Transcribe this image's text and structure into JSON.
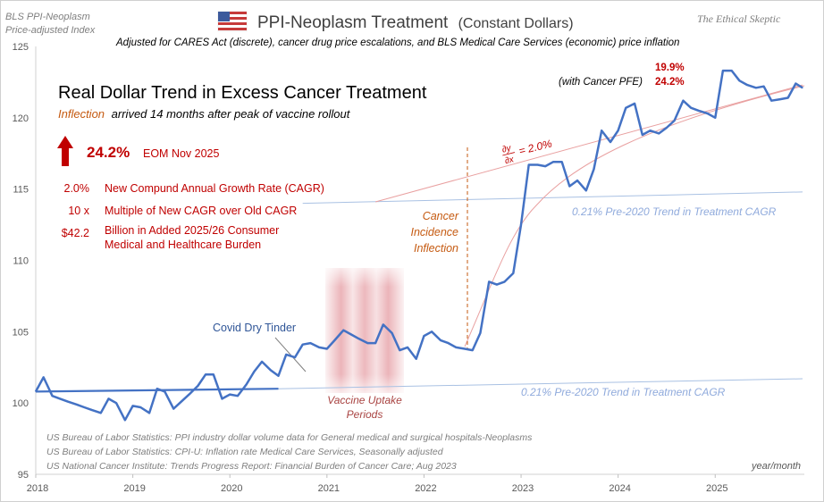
{
  "header": {
    "source_line1": "BLS PPI-Neoplasm",
    "source_line2": "Price-adjusted  Index",
    "title": "PPI-Neoplasm  Treatment",
    "title_suffix": "(Constant Dollars)",
    "brand": "The Ethical Skeptic",
    "subtitle": "Adjusted for CARES Act (discrete),  cancer drug price escalations, and BLS Medical Care Services  (economic)  price  inflation"
  },
  "summary": {
    "headline": "Real Dollar Trend in Excess Cancer Treatment",
    "inflection_word": "Inflection",
    "inflection_rest": "arrived 14 months after peak of vaccine rollout",
    "big_value": "24.2%",
    "big_label": "EOM Nov 2025",
    "stats": [
      {
        "value": "2.0%",
        "label": "New Compund Annual Growth Rate (CAGR)"
      },
      {
        "value": "10 x",
        "label": "Multiple of New CAGR over Old CAGR"
      },
      {
        "value": "$42.2",
        "label": "Billion in Added 2025/26 Consumer",
        "label2": "Medical and Healthcare Burden"
      }
    ]
  },
  "annotations": {
    "with_pfe": "(with Cancer PFE)",
    "pct_top": "19.9%",
    "pct_bottom": "24.2%",
    "derivative": "= 2.0%",
    "deriv_num": "∂y",
    "deriv_den": "∂x",
    "trend_upper": "0.21%   Pre-2020 Trend in Treatment CAGR",
    "trend_lower": "0.21%   Pre-2020 Trend in Treatment CAGR",
    "cancer_line1": "Cancer",
    "cancer_line2": "Incidence",
    "cancer_line3": "Inflection",
    "covid": "Covid Dry Tinder",
    "vaccine_line1": "Vaccine Uptake",
    "vaccine_line2": "Periods",
    "xunit": "year/month"
  },
  "sources": [
    "US Bureau of Labor Statistics: PPI industry dollar volume data for General medical and surgical hospitals-Neoplasms",
    "US Bureau of Labor Statistics: CPI-U: Inflation rate Medical Care Services, Seasonally adjusted",
    "US National Cancer Institute: Trends Progress Report: Financial Burden of Cancer Care; Aug 2023"
  ],
  "colors": {
    "series": "#4472c4",
    "trend": "#a9c1e3",
    "accent_red": "#c00000",
    "fit_red": "#e9a0a0",
    "inflection_orange": "#c55a11",
    "vaccine_band": "#e8a7ad",
    "text_gray": "#595959"
  },
  "icons": {
    "flag": "us-flag-icon",
    "arrow": "up-arrow-icon"
  },
  "chart_data": {
    "type": "line",
    "xlabel": "year/month",
    "ylabel": "",
    "xlim": [
      2018.0,
      2025.9
    ],
    "ylim": [
      95,
      125
    ],
    "x_ticks": [
      "2018",
      "2019",
      "2020",
      "2021",
      "2022",
      "2023",
      "2024",
      "2025"
    ],
    "y_ticks": [
      "95",
      "100",
      "105",
      "110",
      "115",
      "120",
      "125"
    ],
    "grid": false,
    "series": [
      {
        "x": [
          2018.0,
          2018.08,
          2018.17,
          2018.25,
          2018.33,
          2018.42,
          2018.5,
          2018.58,
          2018.67,
          2018.75,
          2018.83,
          2018.92,
          2019.0,
          2019.08,
          2019.17,
          2019.25,
          2019.33,
          2019.42,
          2019.5,
          2019.58,
          2019.67,
          2019.75,
          2019.83,
          2019.92,
          2020.0,
          2020.08,
          2020.17,
          2020.25,
          2020.33,
          2020.42,
          2020.5,
          2020.58,
          2020.67,
          2020.75,
          2020.83,
          2020.92,
          2021.0,
          2021.08,
          2021.17,
          2021.25,
          2021.33,
          2021.42,
          2021.5,
          2021.58,
          2021.67,
          2021.75,
          2021.83,
          2021.92,
          2022.0,
          2022.08,
          2022.17,
          2022.25,
          2022.33,
          2022.42,
          2022.5,
          2022.58,
          2022.67,
          2022.75,
          2022.83,
          2022.92,
          2023.0,
          2023.08,
          2023.17,
          2023.25,
          2023.33,
          2023.42,
          2023.5,
          2023.58,
          2023.67,
          2023.75,
          2023.83,
          2023.92,
          2024.0,
          2024.08,
          2024.17,
          2024.25,
          2024.33,
          2024.42,
          2024.5,
          2024.58,
          2024.67,
          2024.75,
          2024.83,
          2024.92,
          2025.0,
          2025.08,
          2025.17,
          2025.25,
          2025.33,
          2025.42,
          2025.5,
          2025.58,
          2025.67,
          2025.75,
          2025.83,
          2025.9
        ],
        "values": [
          100.8,
          101.8,
          100.5,
          100.3,
          100.1,
          99.9,
          99.7,
          99.5,
          99.3,
          100.3,
          100.0,
          98.8,
          99.8,
          99.7,
          99.3,
          101.0,
          100.8,
          99.6,
          100.1,
          100.6,
          101.2,
          102.0,
          102.0,
          100.3,
          100.6,
          100.5,
          101.3,
          102.2,
          102.9,
          102.3,
          101.9,
          103.4,
          103.2,
          104.1,
          104.2,
          103.9,
          103.8,
          104.4,
          105.1,
          104.8,
          104.5,
          104.2,
          104.2,
          105.5,
          104.9,
          103.7,
          103.9,
          103.1,
          104.7,
          105.0,
          104.4,
          104.2,
          103.9,
          103.8,
          103.7,
          104.9,
          108.5,
          108.3,
          108.5,
          109.1,
          112.5,
          116.7,
          116.7,
          116.6,
          116.9,
          116.9,
          115.2,
          115.6,
          114.9,
          116.4,
          119.1,
          118.3,
          119.1,
          120.7,
          121.0,
          118.8,
          119.1,
          118.9,
          119.3,
          119.8,
          121.2,
          120.7,
          120.5,
          120.3,
          120.0,
          123.3,
          123.3,
          122.6,
          122.3,
          122.1,
          122.2,
          121.2,
          121.3,
          121.4,
          122.4,
          122.1
        ]
      }
    ],
    "trend_lines": [
      {
        "x": [
          2018.0,
          2020.5
        ],
        "values": [
          100.8,
          101.0
        ]
      },
      {
        "x": [
          2020.5,
          2025.9
        ],
        "values": [
          101.0,
          101.7
        ]
      },
      {
        "x": [
          2020.75,
          2025.9
        ],
        "values": [
          114.0,
          114.8
        ]
      },
      {
        "x": [
          2021.5,
          2025.9
        ],
        "values": [
          114.1,
          122.3
        ]
      }
    ]
  }
}
